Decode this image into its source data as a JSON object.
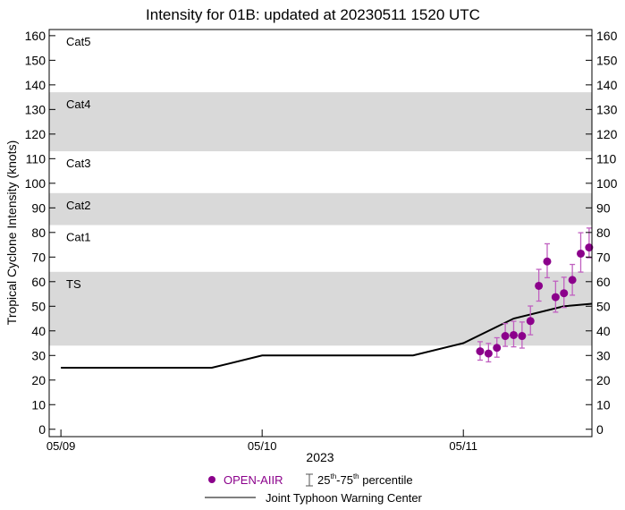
{
  "chart_data": {
    "type": "scatter",
    "title": "Intensity for 01B: updated at 20230511 1520 UTC",
    "xlabel": "2023",
    "ylabel": "Tropical Cyclone Intensity (knots)",
    "ylim": [
      -3,
      162.5
    ],
    "xlim": [
      "2023-05-08 22:36",
      "2023-05-11 15:20"
    ],
    "yticks": [
      0,
      10,
      20,
      30,
      40,
      50,
      60,
      70,
      80,
      90,
      100,
      110,
      120,
      130,
      140,
      150,
      160
    ],
    "xticks": [
      {
        "label": "05/09",
        "t": "2023-05-09 00:00"
      },
      {
        "label": "05/10",
        "t": "2023-05-10 00:00"
      },
      {
        "label": "05/11",
        "t": "2023-05-11 00:00"
      }
    ],
    "grid": false,
    "categories": [
      {
        "label": "TS",
        "min": 34,
        "max": 64,
        "shaded": true
      },
      {
        "label": "Cat1",
        "min": 64,
        "max": 83,
        "shaded": false
      },
      {
        "label": "Cat2",
        "min": 83,
        "max": 96,
        "shaded": true
      },
      {
        "label": "Cat3",
        "min": 96,
        "max": 113,
        "shaded": false
      },
      {
        "label": "Cat4",
        "min": 113,
        "max": 137,
        "shaded": true
      },
      {
        "label": "Cat5",
        "min": 137,
        "max": 170,
        "shaded": false
      }
    ],
    "shade_color": "#d9d9d9",
    "series": [
      {
        "name": "OPEN-AIIR",
        "type": "scatter",
        "color": "#8b008b",
        "error_color": "#c060c0",
        "points": [
          {
            "t": "2023-05-11 02:00",
            "y": 31.7,
            "p25": 28.1,
            "p75": 35.6
          },
          {
            "t": "2023-05-11 03:00",
            "y": 30.8,
            "p25": 27.4,
            "p75": 34.9
          },
          {
            "t": "2023-05-11 04:00",
            "y": 33.1,
            "p25": 29.3,
            "p75": 37.2
          },
          {
            "t": "2023-05-11 05:00",
            "y": 37.9,
            "p25": 33.7,
            "p75": 43.0
          },
          {
            "t": "2023-05-11 06:00",
            "y": 38.3,
            "p25": 33.5,
            "p75": 43.9
          },
          {
            "t": "2023-05-11 07:00",
            "y": 37.9,
            "p25": 33.0,
            "p75": 43.6
          },
          {
            "t": "2023-05-11 08:00",
            "y": 44.0,
            "p25": 38.4,
            "p75": 50.1
          },
          {
            "t": "2023-05-11 09:00",
            "y": 58.3,
            "p25": 52.1,
            "p75": 65.0
          },
          {
            "t": "2023-05-11 10:00",
            "y": 68.2,
            "p25": 61.6,
            "p75": 75.4
          },
          {
            "t": "2023-05-11 11:00",
            "y": 53.7,
            "p25": 47.6,
            "p75": 60.2
          },
          {
            "t": "2023-05-11 12:00",
            "y": 55.3,
            "p25": 49.5,
            "p75": 61.8
          },
          {
            "t": "2023-05-11 13:00",
            "y": 60.7,
            "p25": 54.5,
            "p75": 67.0
          },
          {
            "t": "2023-05-11 14:00",
            "y": 71.4,
            "p25": 63.9,
            "p75": 79.9
          },
          {
            "t": "2023-05-11 15:00",
            "y": 73.9,
            "p25": 69.7,
            "p75": 81.8
          }
        ]
      },
      {
        "name": "Joint Typhoon Warning Center",
        "type": "line",
        "color": "#000000",
        "points": [
          {
            "t": "2023-05-09 00:00",
            "y": 25
          },
          {
            "t": "2023-05-09 18:00",
            "y": 25
          },
          {
            "t": "2023-05-10 00:00",
            "y": 30
          },
          {
            "t": "2023-05-10 18:00",
            "y": 30
          },
          {
            "t": "2023-05-11 00:00",
            "y": 35
          },
          {
            "t": "2023-05-11 06:00",
            "y": 45
          },
          {
            "t": "2023-05-11 12:00",
            "y": 50
          },
          {
            "t": "2023-05-11 18:00",
            "y": 51
          }
        ]
      }
    ],
    "legend": {
      "placement": "bottom",
      "percentile_label": "25th-75th percentile",
      "percentile_sup1": "th",
      "percentile_sup2": "th",
      "percentile_a": "25",
      "percentile_b": "-75",
      "percentile_c": " percentile"
    }
  }
}
